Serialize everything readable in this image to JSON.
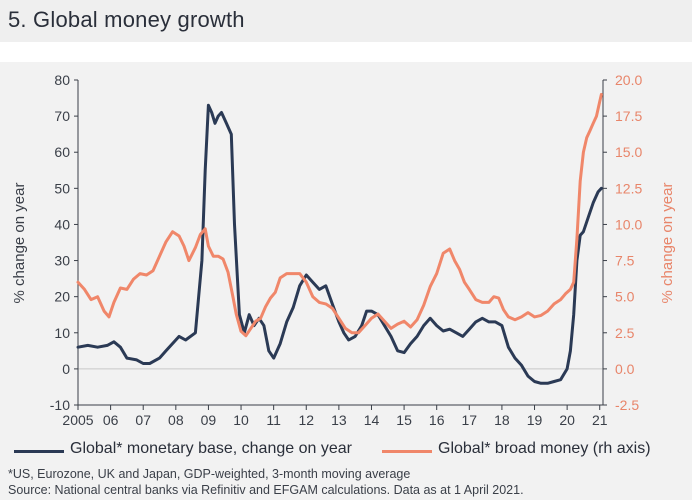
{
  "title": "5. Global money growth",
  "chart_data": {
    "type": "line",
    "title": "5. Global money growth",
    "xlabel": "",
    "ylabel": "% change on year",
    "ylabel_right": "% change on year",
    "x_range": [
      2005,
      2021.1
    ],
    "ylim": [
      -10,
      80
    ],
    "ylim_right": [
      -2.5,
      20.0
    ],
    "x_ticks": [
      2005,
      2006,
      2007,
      2008,
      2009,
      2010,
      2011,
      2012,
      2013,
      2014,
      2015,
      2016,
      2017,
      2018,
      2019,
      2020,
      2021
    ],
    "x_tick_labels": [
      "2005",
      "06",
      "07",
      "08",
      "09",
      "10",
      "11",
      "12",
      "13",
      "14",
      "15",
      "16",
      "17",
      "18",
      "19",
      "20",
      "21"
    ],
    "y_ticks": [
      "80",
      "70",
      "60",
      "50",
      "40",
      "30",
      "20",
      "10",
      "0",
      "-10"
    ],
    "y_ticks_right": [
      "20.0",
      "17.5",
      "15.0",
      "12.5",
      "10.0",
      "7.5",
      "5.0",
      "2.5",
      "0.0",
      "-2.5"
    ],
    "series": [
      {
        "name": "Global* monetary base, change on year",
        "axis": "left",
        "color": "#2b3a55",
        "x": [
          2005.0,
          2005.3,
          2005.6,
          2005.9,
          2006.1,
          2006.3,
          2006.5,
          2006.8,
          2007.0,
          2007.2,
          2007.5,
          2007.7,
          2008.0,
          2008.1,
          2008.3,
          2008.6,
          2008.8,
          2008.9,
          2009.0,
          2009.1,
          2009.2,
          2009.3,
          2009.4,
          2009.55,
          2009.7,
          2009.8,
          2009.95,
          2010.1,
          2010.25,
          2010.4,
          2010.55,
          2010.7,
          2010.85,
          2011.0,
          2011.2,
          2011.4,
          2011.6,
          2011.8,
          2012.0,
          2012.2,
          2012.4,
          2012.6,
          2012.8,
          2013.0,
          2013.15,
          2013.3,
          2013.5,
          2013.7,
          2013.85,
          2014.0,
          2014.2,
          2014.4,
          2014.6,
          2014.8,
          2015.0,
          2015.2,
          2015.4,
          2015.6,
          2015.8,
          2016.0,
          2016.2,
          2016.4,
          2016.6,
          2016.8,
          2017.0,
          2017.2,
          2017.4,
          2017.6,
          2017.8,
          2018.0,
          2018.2,
          2018.4,
          2018.6,
          2018.8,
          2019.0,
          2019.2,
          2019.4,
          2019.6,
          2019.8,
          2020.0,
          2020.1,
          2020.2,
          2020.3,
          2020.4,
          2020.5,
          2020.65,
          2020.8,
          2020.95,
          2021.05
        ],
        "values": [
          6,
          6.5,
          6,
          6.5,
          7.5,
          6,
          3,
          2.5,
          1.5,
          1.5,
          3,
          5,
          8,
          9,
          8,
          10,
          30,
          55,
          73,
          71,
          68,
          70,
          71,
          68,
          65,
          40,
          15,
          10,
          15,
          12,
          14,
          12,
          5,
          3,
          7,
          13,
          17,
          23,
          26,
          24,
          22,
          23,
          18,
          13,
          10,
          8,
          9,
          12,
          16,
          16,
          15,
          12,
          9,
          5,
          4.5,
          7,
          9,
          12,
          14,
          12,
          10.5,
          11,
          10,
          9,
          11,
          13,
          14,
          13,
          13,
          12,
          6,
          3,
          1,
          -2,
          -3.5,
          -4,
          -4,
          -3.5,
          -3,
          0,
          5,
          15,
          30,
          37,
          38,
          42,
          46,
          49,
          50
        ]
      },
      {
        "name": "Global* broad money (rh axis)",
        "axis": "right",
        "color": "#f0876a",
        "x": [
          2005.0,
          2005.2,
          2005.4,
          2005.6,
          2005.8,
          2005.95,
          2006.1,
          2006.3,
          2006.5,
          2006.7,
          2006.9,
          2007.1,
          2007.3,
          2007.5,
          2007.7,
          2007.9,
          2008.1,
          2008.25,
          2008.4,
          2008.6,
          2008.75,
          2008.9,
          2009.0,
          2009.15,
          2009.3,
          2009.45,
          2009.6,
          2009.75,
          2009.85,
          2010.0,
          2010.15,
          2010.3,
          2010.45,
          2010.6,
          2010.75,
          2010.9,
          2011.05,
          2011.2,
          2011.4,
          2011.6,
          2011.8,
          2012.0,
          2012.2,
          2012.4,
          2012.6,
          2012.8,
          2013.0,
          2013.2,
          2013.4,
          2013.6,
          2013.8,
          2014.0,
          2014.2,
          2014.4,
          2014.6,
          2014.8,
          2015.0,
          2015.2,
          2015.4,
          2015.6,
          2015.8,
          2016.0,
          2016.2,
          2016.4,
          2016.55,
          2016.7,
          2016.85,
          2017.0,
          2017.2,
          2017.4,
          2017.6,
          2017.75,
          2017.9,
          2018.05,
          2018.2,
          2018.4,
          2018.6,
          2018.8,
          2019.0,
          2019.2,
          2019.4,
          2019.6,
          2019.8,
          2019.95,
          2020.1,
          2020.2,
          2020.3,
          2020.4,
          2020.5,
          2020.6,
          2020.7,
          2020.8,
          2020.9,
          2021.0,
          2021.05
        ],
        "values": [
          6.0,
          5.5,
          4.8,
          5.0,
          4.0,
          3.6,
          4.6,
          5.6,
          5.5,
          6.2,
          6.6,
          6.5,
          6.8,
          7.8,
          8.8,
          9.5,
          9.2,
          8.5,
          7.5,
          8.4,
          9.3,
          9.7,
          8.5,
          7.8,
          7.8,
          7.6,
          6.7,
          5.0,
          3.8,
          2.6,
          2.3,
          2.8,
          3.3,
          3.5,
          4.3,
          4.9,
          5.3,
          6.3,
          6.6,
          6.6,
          6.6,
          6.0,
          5.0,
          4.6,
          4.5,
          4.2,
          3.5,
          2.8,
          2.5,
          2.5,
          3.0,
          3.5,
          3.8,
          3.3,
          2.8,
          3.1,
          3.3,
          2.9,
          3.4,
          4.4,
          5.7,
          6.6,
          8.0,
          8.3,
          7.5,
          6.9,
          6.0,
          5.5,
          4.8,
          4.6,
          4.6,
          5.0,
          4.9,
          4.1,
          3.6,
          3.4,
          3.6,
          3.9,
          3.6,
          3.7,
          4.0,
          4.5,
          4.8,
          5.2,
          5.5,
          6.0,
          9.0,
          13.0,
          15.0,
          16.0,
          16.5,
          17.0,
          17.5,
          18.5,
          19.0
        ]
      }
    ]
  },
  "footnote": "*US, Eurozone, UK and Japan, GDP-weighted, 3-month moving average",
  "source": "Source: National central banks via Refinitiv and EFGAM calculations. Data as at 1 April 2021."
}
